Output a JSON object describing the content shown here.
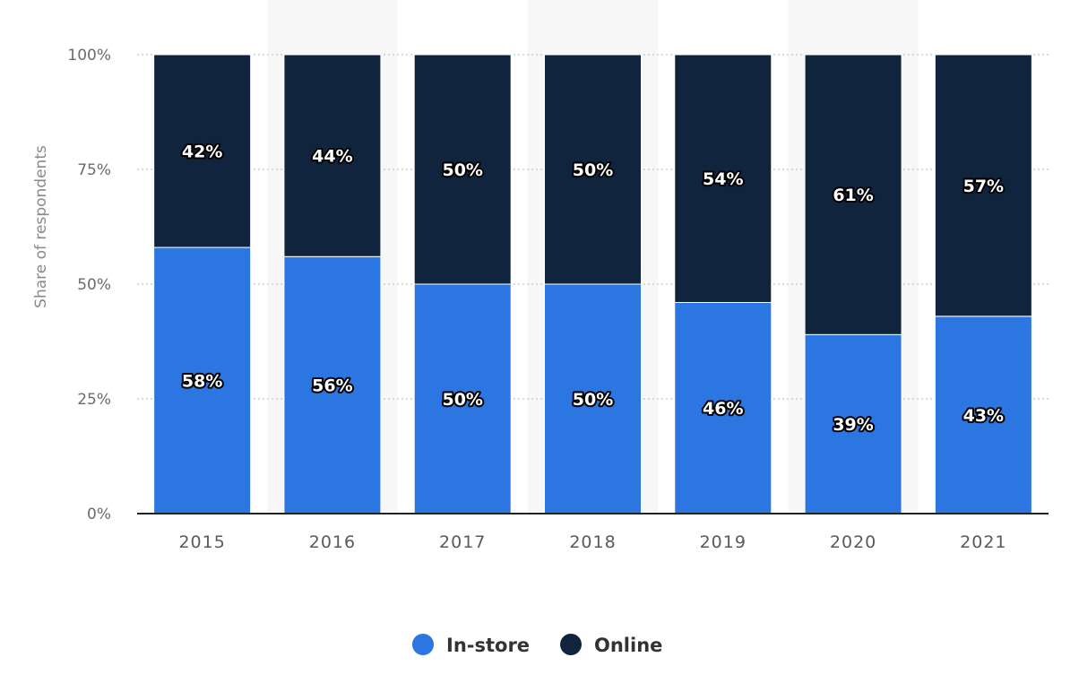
{
  "chart_data": {
    "type": "bar",
    "stacked": true,
    "categories": [
      "2015",
      "2016",
      "2017",
      "2018",
      "2019",
      "2020",
      "2021"
    ],
    "series": [
      {
        "name": "In-store",
        "values": [
          58,
          56,
          50,
          50,
          46,
          39,
          43
        ],
        "labels": [
          "58%",
          "56%",
          "50%",
          "50%",
          "46%",
          "39%",
          "43%"
        ]
      },
      {
        "name": "Online",
        "values": [
          42,
          44,
          50,
          50,
          54,
          61,
          57
        ],
        "labels": [
          "42%",
          "44%",
          "50%",
          "50%",
          "54%",
          "61%",
          "57%"
        ]
      }
    ],
    "ylabel": "Share of respondents",
    "ylim": [
      0,
      100
    ],
    "yticks": [
      0,
      25,
      50,
      75,
      100
    ],
    "ytick_labels": [
      "0%",
      "25%",
      "50%",
      "75%",
      "100%"
    ],
    "grid": true,
    "legend": "bottom-center",
    "colors": {
      "In-store": "#2b76e0",
      "Online": "#11243d",
      "alt_band": "#f7f7f7",
      "grid": "#b5b5b5",
      "axis": "#222222"
    }
  }
}
